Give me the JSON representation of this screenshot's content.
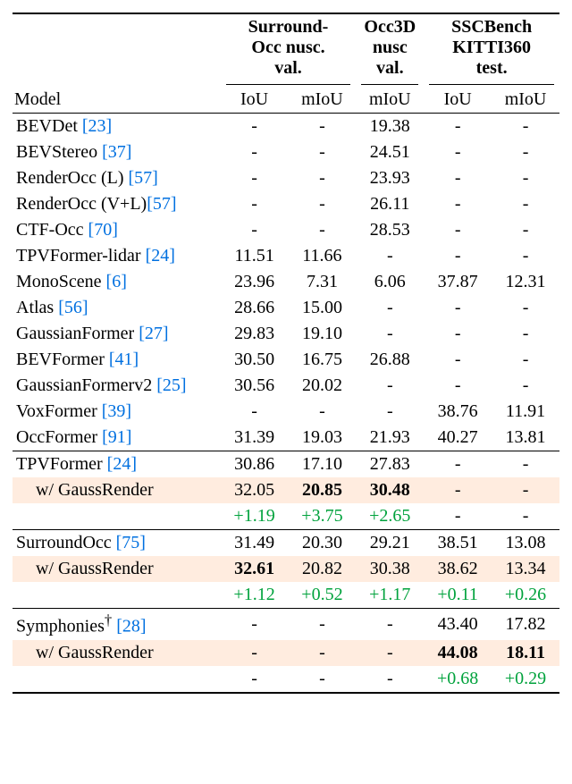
{
  "headers": {
    "group1": "Surround-\nOcc nusc.\nval.",
    "group2": "Occ3D\nnusc\nval.",
    "group3": "SSCBench\nKITTI360\ntest.",
    "model": "Model",
    "iou": "IoU",
    "miou": "mIoU"
  },
  "rows": [
    {
      "model": "BEVDet ",
      "cite": "[23]",
      "v": [
        "-",
        "-",
        "19.38",
        "-",
        "-"
      ]
    },
    {
      "model": "BEVStereo ",
      "cite": "[37]",
      "v": [
        "-",
        "-",
        "24.51",
        "-",
        "-"
      ]
    },
    {
      "model": "RenderOcc (L) ",
      "cite": "[57]",
      "v": [
        "-",
        "-",
        "23.93",
        "-",
        "-"
      ]
    },
    {
      "model": "RenderOcc (V+L)",
      "cite": "[57]",
      "v": [
        "-",
        "-",
        "26.11",
        "-",
        "-"
      ]
    },
    {
      "model": "CTF-Occ ",
      "cite": "[70]",
      "v": [
        "-",
        "-",
        "28.53",
        "-",
        "-"
      ]
    },
    {
      "model": "TPVFormer-lidar ",
      "cite": "[24]",
      "v": [
        "11.51",
        "11.66",
        "-",
        "-",
        "-"
      ]
    },
    {
      "model": "MonoScene ",
      "cite": "[6]",
      "v": [
        "23.96",
        "7.31",
        "6.06",
        "37.87",
        "12.31"
      ]
    },
    {
      "model": "Atlas ",
      "cite": "[56]",
      "v": [
        "28.66",
        "15.00",
        "-",
        "-",
        "-"
      ]
    },
    {
      "model": "GaussianFormer ",
      "cite": "[27]",
      "v": [
        "29.83",
        "19.10",
        "-",
        "-",
        "-"
      ]
    },
    {
      "model": "BEVFormer ",
      "cite": "[41]",
      "v": [
        "30.50",
        "16.75",
        "26.88",
        "-",
        "-"
      ]
    },
    {
      "model": "GaussianFormerv2 ",
      "cite": "[25]",
      "v": [
        "30.56",
        "20.02",
        "-",
        "-",
        "-"
      ]
    },
    {
      "model": "VoxFormer ",
      "cite": "[39]",
      "v": [
        "-",
        "-",
        "-",
        "38.76",
        "11.91"
      ]
    },
    {
      "model": "OccFormer ",
      "cite": "[91]",
      "v": [
        "31.39",
        "19.03",
        "21.93",
        "40.27",
        "13.81"
      ]
    }
  ],
  "groups": [
    {
      "base": {
        "model": "TPVFormer ",
        "cite": "[24]",
        "v": [
          "30.86",
          "17.10",
          "27.83",
          "-",
          "-"
        ]
      },
      "gauss": {
        "label": "w/ GaussRender",
        "v": [
          "32.05",
          "20.85",
          "30.48",
          "-",
          "-"
        ],
        "bold": [
          false,
          true,
          true,
          false,
          false
        ]
      },
      "delta": [
        "+1.19",
        "+3.75",
        "+2.65",
        "-",
        "-"
      ]
    },
    {
      "base": {
        "model": "SurroundOcc ",
        "cite": "[75]",
        "v": [
          "31.49",
          "20.30",
          "29.21",
          "38.51",
          "13.08"
        ]
      },
      "gauss": {
        "label": "w/ GaussRender",
        "v": [
          "32.61",
          "20.82",
          "30.38",
          "38.62",
          "13.34"
        ],
        "bold": [
          true,
          false,
          false,
          false,
          false
        ]
      },
      "delta": [
        "+1.12",
        "+0.52",
        "+1.17",
        "+0.11",
        "+0.26"
      ]
    },
    {
      "base": {
        "model": "Symphonies",
        "sup": "†",
        "cite": "[28]",
        "v": [
          "-",
          "-",
          "-",
          "43.40",
          "17.82"
        ]
      },
      "gauss": {
        "label": "w/ GaussRender",
        "v": [
          "-",
          "-",
          "-",
          "44.08",
          "18.11"
        ],
        "bold": [
          false,
          false,
          false,
          true,
          true
        ]
      },
      "delta": [
        "-",
        "-",
        "-",
        "+0.68",
        "+0.29"
      ]
    }
  ]
}
